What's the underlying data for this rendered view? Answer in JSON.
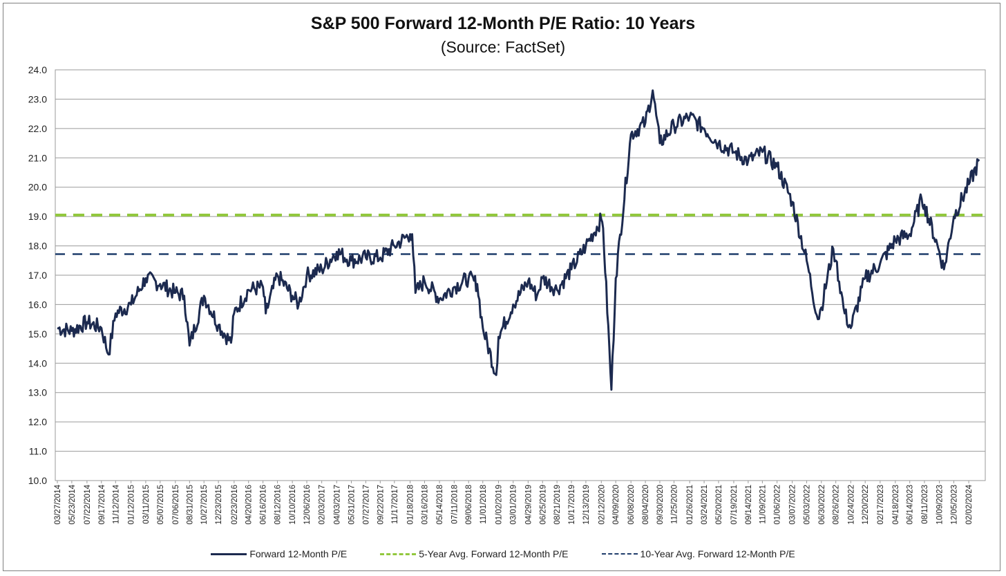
{
  "chart_data": {
    "type": "line",
    "title": "S&P 500 Forward 12-Month P/E Ratio: 10 Years",
    "subtitle": "(Source: FactSet)",
    "ylim": [
      10.0,
      24.0
    ],
    "y_ticks": [
      "10.0",
      "11.0",
      "12.0",
      "13.0",
      "14.0",
      "15.0",
      "16.0",
      "17.0",
      "18.0",
      "19.0",
      "20.0",
      "21.0",
      "22.0",
      "23.0",
      "24.0"
    ],
    "x_ticks": [
      "03/27/2014",
      "05/23/2014",
      "07/22/2014",
      "09/17/2014",
      "11/12/2014",
      "01/12/2015",
      "03/11/2015",
      "05/07/2015",
      "07/06/2015",
      "08/31/2015",
      "10/27/2015",
      "12/23/2015",
      "02/23/2016",
      "04/20/2016",
      "06/16/2016",
      "08/12/2016",
      "10/10/2016",
      "12/06/2016",
      "02/03/2017",
      "04/03/2017",
      "05/31/2017",
      "07/27/2017",
      "09/22/2017",
      "11/17/2017",
      "01/18/2018",
      "03/16/2018",
      "05/14/2018",
      "07/11/2018",
      "09/06/2018",
      "11/01/2018",
      "01/02/2019",
      "03/01/2019",
      "04/29/2019",
      "06/25/2019",
      "08/21/2019",
      "10/17/2019",
      "12/13/2019",
      "02/12/2020",
      "04/09/2020",
      "06/08/2020",
      "08/04/2020",
      "09/30/2020",
      "11/25/2020",
      "01/26/2021",
      "03/24/2021",
      "05/20/2021",
      "07/19/2021",
      "09/14/2021",
      "11/09/2021",
      "01/06/2022",
      "03/07/2022",
      "05/03/2022",
      "06/30/2022",
      "08/26/2022",
      "10/24/2022",
      "12/20/2022",
      "02/17/2023",
      "04/18/2023",
      "06/14/2023",
      "08/11/2023",
      "10/09/2023",
      "12/05/2023",
      "02/02/2024"
    ],
    "grid": true,
    "legend_position": "bottom",
    "series": [
      {
        "name": "Forward 12-Month P/E",
        "color": "#1c2a4f",
        "style": "solid",
        "x": [
          "03/27/2014",
          "05/23/2014",
          "07/22/2014",
          "09/17/2014",
          "10/15/2014",
          "11/12/2014",
          "01/12/2015",
          "03/11/2015",
          "05/07/2015",
          "07/06/2015",
          "08/10/2015",
          "08/31/2015",
          "10/27/2015",
          "12/23/2015",
          "02/11/2016",
          "02/23/2016",
          "04/20/2016",
          "06/16/2016",
          "06/27/2016",
          "08/12/2016",
          "10/10/2016",
          "11/04/2016",
          "12/06/2016",
          "02/03/2017",
          "04/03/2017",
          "05/31/2017",
          "07/27/2017",
          "09/22/2017",
          "11/17/2017",
          "01/18/2018",
          "01/26/2018",
          "02/08/2018",
          "03/16/2018",
          "05/14/2018",
          "07/11/2018",
          "09/06/2018",
          "10/10/2018",
          "11/01/2018",
          "12/24/2018",
          "01/02/2019",
          "03/01/2019",
          "04/29/2019",
          "06/03/2019",
          "06/25/2019",
          "08/21/2019",
          "10/17/2019",
          "12/13/2019",
          "02/12/2020",
          "02/19/2020",
          "03/23/2020",
          "04/09/2020",
          "06/08/2020",
          "08/04/2020",
          "09/02/2020",
          "09/30/2020",
          "11/25/2020",
          "01/26/2021",
          "03/24/2021",
          "05/20/2021",
          "07/19/2021",
          "09/14/2021",
          "11/09/2021",
          "01/06/2022",
          "03/07/2022",
          "05/03/2022",
          "06/16/2022",
          "06/30/2022",
          "08/16/2022",
          "08/26/2022",
          "09/30/2022",
          "10/24/2022",
          "12/20/2022",
          "02/17/2023",
          "04/18/2023",
          "06/14/2023",
          "07/31/2023",
          "08/11/2023",
          "10/09/2023",
          "10/27/2023",
          "12/05/2023",
          "02/02/2024",
          "03/15/2024"
        ],
        "values": [
          15.2,
          15.1,
          15.4,
          15.2,
          14.3,
          15.7,
          16.0,
          16.9,
          16.7,
          16.4,
          16.3,
          14.6,
          16.3,
          15.3,
          14.7,
          15.7,
          16.5,
          16.6,
          15.7,
          17.0,
          16.3,
          16.0,
          17.0,
          17.2,
          17.8,
          17.5,
          17.6,
          17.6,
          18.0,
          18.4,
          18.4,
          16.4,
          16.8,
          16.2,
          16.6,
          16.9,
          16.7,
          15.2,
          13.6,
          14.9,
          16.0,
          16.8,
          16.3,
          16.9,
          16.5,
          17.2,
          18.0,
          18.9,
          18.6,
          13.1,
          16.9,
          21.8,
          22.2,
          23.3,
          21.5,
          22.1,
          22.4,
          22.0,
          21.5,
          21.2,
          20.9,
          21.2,
          20.7,
          19.5,
          17.5,
          15.5,
          15.9,
          17.9,
          17.5,
          15.7,
          15.2,
          16.9,
          17.4,
          18.2,
          18.4,
          19.6,
          19.4,
          17.8,
          17.2,
          19.0,
          20.1,
          20.9
        ]
      },
      {
        "name": "5-Year Avg. Forward 12-Month P/E",
        "color": "#92c83e",
        "style": "dashed",
        "value": 19.05
      },
      {
        "name": "10-Year Avg. Forward 12-Month P/E",
        "color": "#1f3d6b",
        "style": "dashed",
        "value": 17.72
      }
    ]
  }
}
